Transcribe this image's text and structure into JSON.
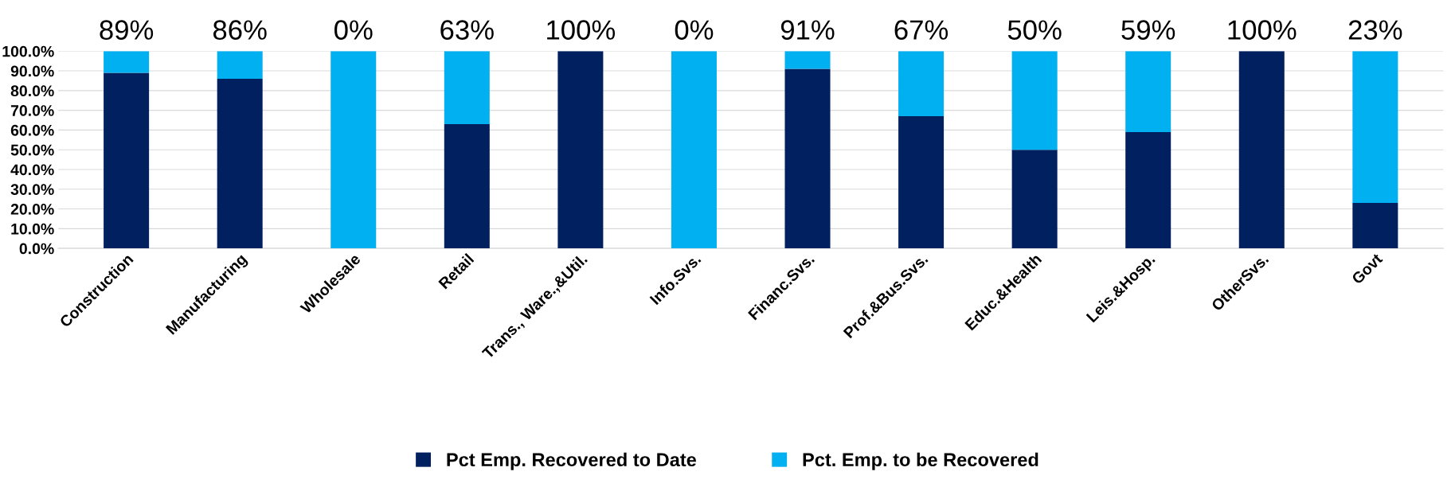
{
  "chart_data": {
    "type": "bar",
    "stacked": true,
    "categories": [
      "Construction",
      "Manufacturing",
      "Wholesale",
      "Retail",
      "Trans., Ware.,&Util.",
      "Info.Svs.",
      "Financ.Svs.",
      "Prof.&Bus.Svs.",
      "Educ.&Health",
      "Leis.&Hosp.",
      "OtherSvs.",
      "Govt"
    ],
    "series": [
      {
        "name": "Pct Emp. Recovered to Date",
        "color": "#002060",
        "values": [
          89,
          86,
          0,
          63,
          100,
          0,
          91,
          67,
          50,
          59,
          100,
          23
        ]
      },
      {
        "name": "Pct. Emp. to be Recovered",
        "color": "#00b0f0",
        "values": [
          11,
          14,
          100,
          37,
          0,
          100,
          9,
          33,
          50,
          41,
          0,
          77
        ]
      }
    ],
    "ylim": [
      0,
      100
    ],
    "yticks": [
      {
        "value": 0,
        "label": "0.0%"
      },
      {
        "value": 10,
        "label": "10.0%"
      },
      {
        "value": 20,
        "label": "20.0%"
      },
      {
        "value": 30,
        "label": "30.0%"
      },
      {
        "value": 40,
        "label": "40.0%"
      },
      {
        "value": 50,
        "label": "50.0%"
      },
      {
        "value": 60,
        "label": "60.0%"
      },
      {
        "value": 70,
        "label": "70.0%"
      },
      {
        "value": 80,
        "label": "80.0%"
      },
      {
        "value": 90,
        "label": "90.0%"
      },
      {
        "value": 100,
        "label": "100.0%"
      }
    ],
    "annotations": [
      "89%",
      "86%",
      "0%",
      "63%",
      "100%",
      "0%",
      "91%",
      "67%",
      "50%",
      "59%",
      "100%",
      "23%"
    ],
    "grid": "y",
    "legend": "bottom"
  }
}
